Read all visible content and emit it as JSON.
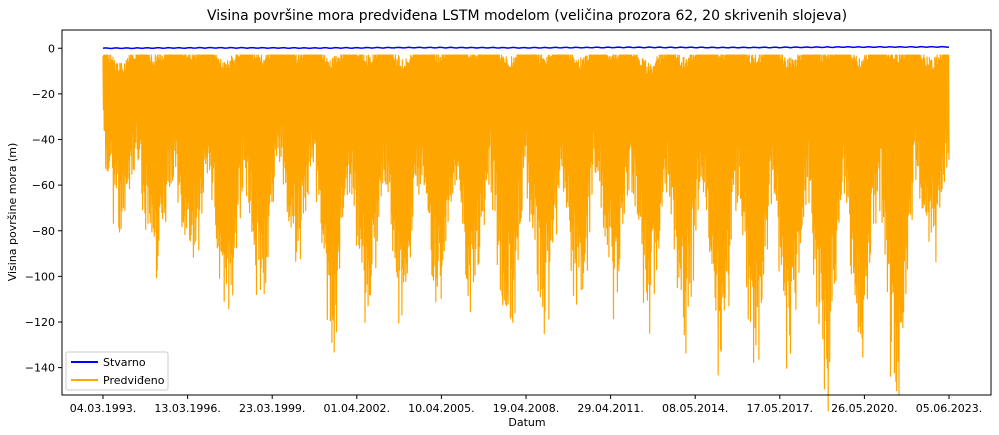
{
  "chart_data": {
    "type": "line",
    "title": "Visina površine mora predviđena LSTM modelom (veličina prozora 62, 20 skrivenih slojeva)",
    "xlabel": "Datum",
    "ylabel": "Visina površine mora (m)",
    "ylim": [
      -152,
      8
    ],
    "yticks": [
      0,
      -20,
      -40,
      -60,
      -80,
      -100,
      -120,
      -140
    ],
    "xticks": [
      "04.03.1993.",
      "13.03.1996.",
      "23.03.1999.",
      "01.04.2002.",
      "10.04.2005.",
      "19.04.2008.",
      "29.04.2011.",
      "08.05.2014.",
      "17.05.2017.",
      "26.05.2020.",
      "05.06.2023."
    ],
    "x_range": [
      "04.03.1993.",
      "05.06.2023."
    ],
    "grid": false,
    "legend": "lower-left",
    "series": [
      {
        "name": "Stvarno",
        "color": "#0000ff",
        "values": [
          0.0,
          0.2,
          0.1,
          0.3,
          0.2,
          0.4,
          0.3,
          0.5,
          0.6
        ]
      },
      {
        "name": "Predviđeno",
        "color": "#ffa500",
        "values": [
          -12,
          -65,
          -8,
          -87,
          -6,
          -86,
          -10,
          -104,
          -8,
          -95,
          -7,
          -80,
          -9,
          -112,
          -8,
          -106,
          -10,
          -110,
          -7,
          -101,
          -6,
          -105,
          -9,
          -117,
          -8,
          -110,
          -10,
          -99,
          -7,
          -100,
          -12,
          -107,
          -9,
          -110,
          -6,
          -124,
          -8,
          -129,
          -10,
          -124,
          -7,
          -144,
          -9,
          -128,
          -8,
          -140,
          -10,
          -75
        ]
      }
    ]
  }
}
